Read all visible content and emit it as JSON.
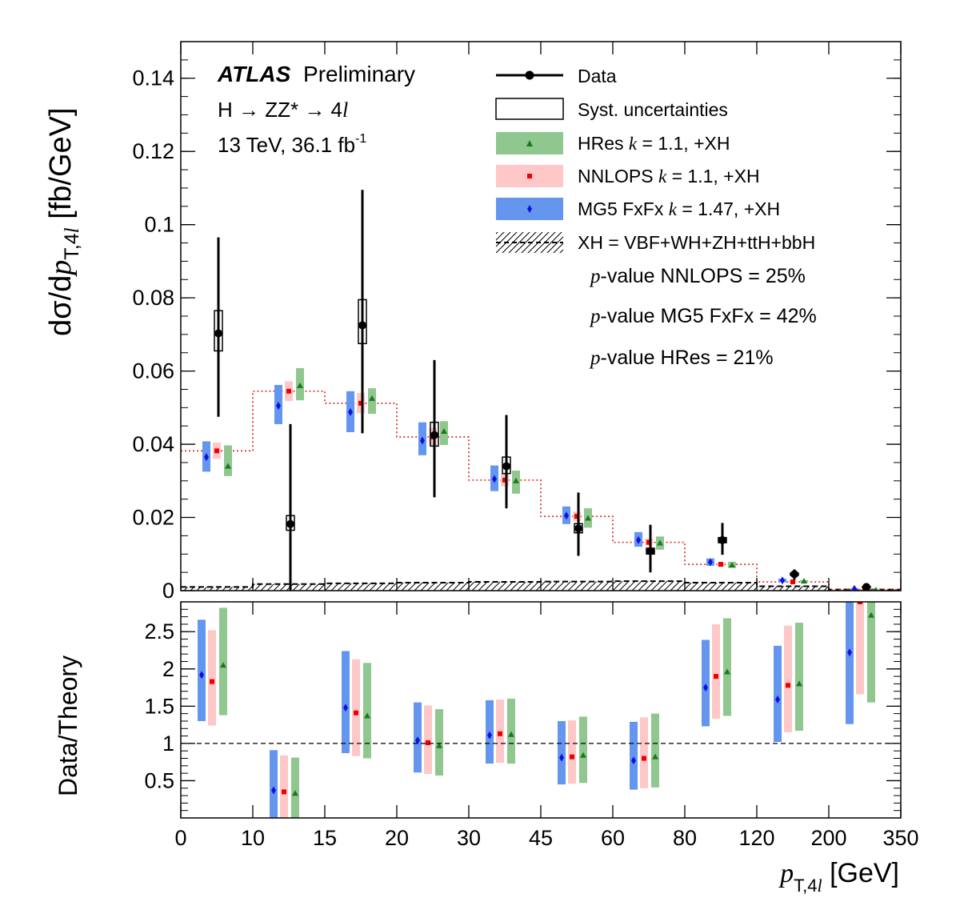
{
  "chart_data": {
    "type": "scatter",
    "experiment": "ATLAS",
    "label": "Preliminary",
    "process": "H → ZZ* → 4",
    "process_l": "l",
    "energy": "13 TeV, 36.1 fb",
    "energy_exp": "-1",
    "xaxis": {
      "label_sym": "p",
      "label_sub": "T,4",
      "label_subl": "l",
      "label_unit": " [GeV]",
      "ticks": [
        "0",
        "10",
        "15",
        "20",
        "30",
        "45",
        "60",
        "80",
        "120",
        "200",
        "350"
      ]
    },
    "top_yaxis": {
      "label_pre": "dσ/d",
      "label_sym": "p",
      "label_sub": "T,4",
      "label_subl": "l",
      "label_unit": " [fb/GeV]",
      "ylim": [
        0,
        0.15
      ],
      "ticks": [
        0,
        0.02,
        0.04,
        0.06,
        0.08,
        0.1,
        0.12,
        0.14
      ],
      "tick_labels": [
        "0",
        "0.02",
        "0.04",
        "0.06",
        "0.08",
        "0.1",
        "0.12",
        "0.14"
      ]
    },
    "bottom_yaxis": {
      "label": "Data/Theory",
      "ylim": [
        0,
        2.9
      ],
      "ticks": [
        0.5,
        1,
        1.5,
        2,
        2.5
      ],
      "tick_labels": [
        "0.5",
        "1",
        "1.5",
        "2",
        "2.5"
      ],
      "ref_line": 1
    },
    "legend": {
      "data": "Data",
      "syst": "Syst. uncertainties",
      "hres": "HRes ",
      "hres_k": "k",
      "hres_tail": " = 1.1, +XH",
      "nnlops": "NNLOPS ",
      "nnlops_k": "k",
      "nnlops_tail": " = 1.1, +XH",
      "mg5": "MG5 FxFx ",
      "mg5_k": "k",
      "mg5_tail": " = 1.47, +XH",
      "xh": "XH = VBF+WH+ZH+ttH+bbH"
    },
    "pvalues": [
      {
        "p": "p",
        "text": "-value NNLOPS = 25%"
      },
      {
        "p": "p",
        "text": "-value MG5 FxFx = 42%"
      },
      {
        "p": "p",
        "text": "-value HRes = 21%"
      }
    ],
    "colors": {
      "hres": "#8fc78f",
      "hres_marker": "#1a7a1a",
      "nnlops": "#ffc8c8",
      "nnlops_marker": "#ee0000",
      "mg5": "#6496f0",
      "mg5_marker": "#1010e0",
      "data": "#000000"
    },
    "data": [
      {
        "bin": 0,
        "y": 0.0703,
        "stat_lo": 0.0475,
        "stat_hi": 0.0965,
        "syst_lo": 0.0655,
        "syst_hi": 0.0765
      },
      {
        "bin": 1,
        "y": 0.0182,
        "stat_lo": 0.0,
        "stat_hi": 0.0455,
        "syst_lo": 0.0165,
        "syst_hi": 0.0205
      },
      {
        "bin": 2,
        "y": 0.0725,
        "stat_lo": 0.043,
        "stat_hi": 0.1095,
        "syst_lo": 0.0675,
        "syst_hi": 0.0795
      },
      {
        "bin": 3,
        "y": 0.0425,
        "stat_lo": 0.0255,
        "stat_hi": 0.063,
        "syst_lo": 0.0395,
        "syst_hi": 0.046
      },
      {
        "bin": 4,
        "y": 0.034,
        "stat_lo": 0.0225,
        "stat_hi": 0.048,
        "syst_lo": 0.032,
        "syst_hi": 0.0365
      },
      {
        "bin": 5,
        "y": 0.017,
        "stat_lo": 0.0095,
        "stat_hi": 0.0268,
        "syst_lo": 0.0158,
        "syst_hi": 0.0183
      },
      {
        "bin": 6,
        "y": 0.0108,
        "stat_lo": 0.005,
        "stat_hi": 0.018,
        "syst_lo": 0.01,
        "syst_hi": 0.0116
      },
      {
        "bin": 7,
        "y": 0.0138,
        "stat_lo": 0.0098,
        "stat_hi": 0.0185,
        "syst_lo": 0.0131,
        "syst_hi": 0.0145
      },
      {
        "bin": 8,
        "y": 0.0045,
        "stat_lo": 0.003,
        "stat_hi": 0.0058,
        "syst_lo": 0.0042,
        "syst_hi": 0.0048
      },
      {
        "bin": 9,
        "y": 0.001,
        "stat_lo": 0.0005,
        "stat_hi": 0.0017,
        "syst_lo": 0.0009,
        "syst_hi": 0.0011
      }
    ],
    "mg5_pred": [
      {
        "bin": 0,
        "y": 0.0365,
        "lo": 0.0325,
        "hi": 0.0408
      },
      {
        "bin": 1,
        "y": 0.0505,
        "lo": 0.0455,
        "hi": 0.0562
      },
      {
        "bin": 2,
        "y": 0.0488,
        "lo": 0.0433,
        "hi": 0.0545
      },
      {
        "bin": 3,
        "y": 0.041,
        "lo": 0.037,
        "hi": 0.046
      },
      {
        "bin": 4,
        "y": 0.0305,
        "lo": 0.0272,
        "hi": 0.0342
      },
      {
        "bin": 5,
        "y": 0.0205,
        "lo": 0.0182,
        "hi": 0.023
      },
      {
        "bin": 6,
        "y": 0.0138,
        "lo": 0.012,
        "hi": 0.016
      },
      {
        "bin": 7,
        "y": 0.0078,
        "lo": 0.0068,
        "hi": 0.0088
      },
      {
        "bin": 8,
        "y": 0.0028,
        "lo": 0.0023,
        "hi": 0.0033
      },
      {
        "bin": 9,
        "y": 0.0005,
        "lo": 0.0003,
        "hi": 0.0007
      }
    ],
    "nnlops_pred": [
      {
        "bin": 0,
        "y": 0.0382,
        "lo": 0.036,
        "hi": 0.0405
      },
      {
        "bin": 1,
        "y": 0.0545,
        "lo": 0.0518,
        "hi": 0.0572
      },
      {
        "bin": 2,
        "y": 0.0512,
        "lo": 0.0485,
        "hi": 0.054
      },
      {
        "bin": 3,
        "y": 0.042,
        "lo": 0.0397,
        "hi": 0.0445
      },
      {
        "bin": 4,
        "y": 0.0302,
        "lo": 0.0285,
        "hi": 0.032
      },
      {
        "bin": 5,
        "y": 0.0203,
        "lo": 0.019,
        "hi": 0.0216
      },
      {
        "bin": 6,
        "y": 0.0132,
        "lo": 0.0123,
        "hi": 0.0142
      },
      {
        "bin": 7,
        "y": 0.0072,
        "lo": 0.0067,
        "hi": 0.0077
      },
      {
        "bin": 8,
        "y": 0.0024,
        "lo": 0.0022,
        "hi": 0.0027
      },
      {
        "bin": 9,
        "y": 0.0003,
        "lo": 0.0002,
        "hi": 0.0004
      }
    ],
    "hres_pred": [
      {
        "bin": 0,
        "y": 0.034,
        "lo": 0.0313,
        "hi": 0.0397
      },
      {
        "bin": 1,
        "y": 0.056,
        "lo": 0.052,
        "hi": 0.0608
      },
      {
        "bin": 2,
        "y": 0.0525,
        "lo": 0.0483,
        "hi": 0.0553
      },
      {
        "bin": 3,
        "y": 0.0435,
        "lo": 0.0398,
        "hi": 0.0463
      },
      {
        "bin": 4,
        "y": 0.03,
        "lo": 0.0265,
        "hi": 0.0328
      },
      {
        "bin": 5,
        "y": 0.0198,
        "lo": 0.0172,
        "hi": 0.0225
      },
      {
        "bin": 6,
        "y": 0.013,
        "lo": 0.0112,
        "hi": 0.0148
      },
      {
        "bin": 7,
        "y": 0.007,
        "lo": 0.0062,
        "hi": 0.0079
      },
      {
        "bin": 8,
        "y": 0.0026,
        "lo": 0.0023,
        "hi": 0.0029
      },
      {
        "bin": 9,
        "y": 0.0002,
        "lo": 0.0001,
        "hi": 0.0003
      }
    ],
    "nnlops_line": [
      0.0382,
      0.0545,
      0.0512,
      0.042,
      0.0302,
      0.0203,
      0.0132,
      0.0072,
      0.0024,
      0.0003
    ],
    "xh_line": [
      0.001,
      0.0018,
      0.002,
      0.0022,
      0.0024,
      0.0025,
      0.0026,
      0.0022,
      0.0012,
      0.0003
    ],
    "ratio": {
      "mg5": [
        {
          "y": 1.92,
          "lo": 1.3,
          "hi": 2.66
        },
        {
          "y": 0.37,
          "lo": 0.0,
          "hi": 0.91
        },
        {
          "y": 1.48,
          "lo": 0.87,
          "hi": 2.24
        },
        {
          "y": 1.04,
          "lo": 0.61,
          "hi": 1.55
        },
        {
          "y": 1.11,
          "lo": 0.73,
          "hi": 1.58
        },
        {
          "y": 0.81,
          "lo": 0.45,
          "hi": 1.3
        },
        {
          "y": 0.77,
          "lo": 0.38,
          "hi": 1.29
        },
        {
          "y": 1.75,
          "lo": 1.23,
          "hi": 2.39
        },
        {
          "y": 1.59,
          "lo": 1.02,
          "hi": 2.31
        },
        {
          "y": 2.22,
          "lo": 1.26,
          "hi": 2.9
        }
      ],
      "nnlops": [
        {
          "y": 1.83,
          "lo": 1.24,
          "hi": 2.52
        },
        {
          "y": 0.35,
          "lo": 0.0,
          "hi": 0.84
        },
        {
          "y": 1.41,
          "lo": 0.83,
          "hi": 2.13
        },
        {
          "y": 1.01,
          "lo": 0.59,
          "hi": 1.51
        },
        {
          "y": 1.13,
          "lo": 0.74,
          "hi": 1.59
        },
        {
          "y": 0.82,
          "lo": 0.46,
          "hi": 1.31
        },
        {
          "y": 0.8,
          "lo": 0.4,
          "hi": 1.35
        },
        {
          "y": 1.9,
          "lo": 1.33,
          "hi": 2.6
        },
        {
          "y": 1.78,
          "lo": 1.15,
          "hi": 2.58
        },
        {
          "y": 2.9,
          "lo": 1.66,
          "hi": 2.9
        }
      ],
      "hres": [
        {
          "y": 2.05,
          "lo": 1.38,
          "hi": 2.82
        },
        {
          "y": 0.33,
          "lo": 0.0,
          "hi": 0.81
        },
        {
          "y": 1.37,
          "lo": 0.8,
          "hi": 2.08
        },
        {
          "y": 0.97,
          "lo": 0.57,
          "hi": 1.46
        },
        {
          "y": 1.12,
          "lo": 0.73,
          "hi": 1.6
        },
        {
          "y": 0.84,
          "lo": 0.47,
          "hi": 1.36
        },
        {
          "y": 0.82,
          "lo": 0.41,
          "hi": 1.4
        },
        {
          "y": 1.96,
          "lo": 1.37,
          "hi": 2.68
        },
        {
          "y": 1.8,
          "lo": 1.17,
          "hi": 2.62
        },
        {
          "y": 2.72,
          "lo": 1.55,
          "hi": 2.9
        }
      ]
    }
  }
}
